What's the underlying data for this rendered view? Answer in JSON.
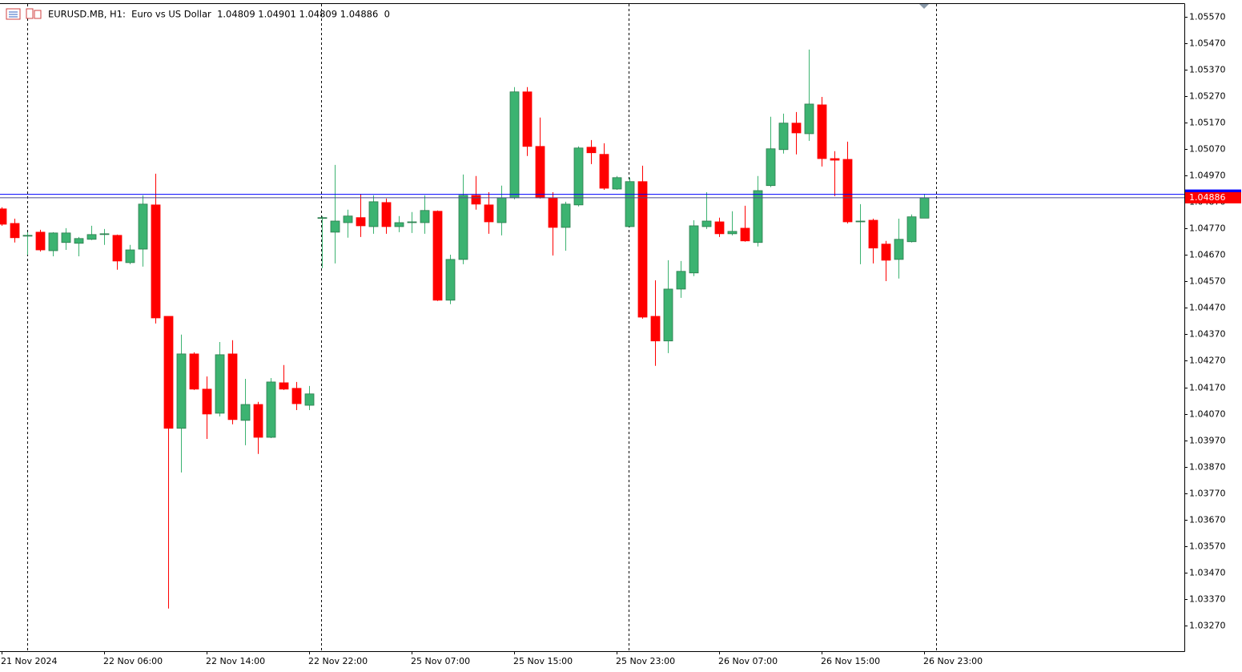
{
  "chart_data": {
    "type": "candlestick",
    "title": "EURUSD.MB, H1:  Euro vs US Dollar  1.04809 1.04901 1.04809 1.04886  0",
    "categories": [
      "21 Nov 2024",
      null,
      null,
      null,
      null,
      null,
      null,
      null,
      "22 Nov 06:00",
      null,
      null,
      null,
      null,
      null,
      null,
      null,
      "22 Nov 14:00",
      null,
      null,
      null,
      null,
      null,
      null,
      null,
      "22 Nov 22:00",
      null,
      null,
      null,
      null,
      null,
      null,
      null,
      "25 Nov 07:00",
      null,
      null,
      null,
      null,
      null,
      null,
      null,
      "25 Nov 15:00",
      null,
      null,
      null,
      null,
      null,
      null,
      null,
      "25 Nov 23:00",
      null,
      null,
      null,
      null,
      null,
      null,
      null,
      "26 Nov 07:00",
      null,
      null,
      null,
      null,
      null,
      null,
      null,
      "26 Nov 15:00",
      null,
      null,
      null,
      null,
      null,
      null,
      null,
      "26 Nov 23:00"
    ],
    "open": [
      1.04844,
      1.04789,
      1.04741,
      1.04756,
      1.04686,
      1.04717,
      1.04714,
      1.04729,
      1.04747,
      1.04744,
      1.04641,
      1.04692,
      1.04859,
      1.04438,
      1.04015,
      1.04296,
      1.04163,
      1.04072,
      1.04296,
      1.04045,
      1.04105,
      1.03981,
      1.04187,
      1.04166,
      1.04102,
      1.04811,
      1.04756,
      1.04792,
      1.04811,
      1.04777,
      1.04868,
      1.04777,
      1.04795,
      1.04792,
      1.04835,
      1.04499,
      1.04653,
      1.04895,
      1.04859,
      1.04792,
      1.04886,
      1.05286,
      1.0508,
      1.04886,
      1.04774,
      1.04859,
      1.05077,
      1.0505,
      1.04919,
      1.04777,
      1.04947,
      1.04438,
      1.04345,
      1.04541,
      1.04602,
      1.04777,
      1.04795,
      1.0475,
      1.04771,
      1.04717,
      1.04932,
      1.05068,
      1.05168,
      1.05128,
      1.05237,
      1.05034,
      1.05031,
      1.04798,
      1.04801,
      1.04711,
      1.04653,
      1.0472,
      1.04809
    ],
    "high": [
      1.0485,
      1.04807,
      1.04756,
      1.04765,
      1.04756,
      1.04771,
      1.04738,
      1.0478,
      1.04768,
      1.04747,
      1.04708,
      1.04895,
      1.04977,
      1.04438,
      1.04369,
      1.04302,
      1.04211,
      1.04341,
      1.04348,
      1.04202,
      1.04115,
      1.04205,
      1.04254,
      1.0419,
      1.04175,
      1.04817,
      1.0501,
      1.04841,
      1.04901,
      1.04895,
      1.04883,
      1.04817,
      1.04832,
      1.04895,
      1.04838,
      1.04671,
      1.04974,
      1.04968,
      1.04907,
      1.04932,
      1.05304,
      1.05304,
      1.05189,
      1.04907,
      1.04871,
      1.0508,
      1.05104,
      1.05092,
      1.04968,
      1.04962,
      1.05007,
      1.04574,
      1.0465,
      1.04647,
      1.04801,
      1.04907,
      1.04811,
      1.04835,
      1.04856,
      1.04968,
      1.05192,
      1.05204,
      1.0521,
      1.05446,
      1.05267,
      1.05062,
      1.05098,
      1.04862,
      1.04807,
      1.04723,
      1.04807,
      1.04823,
      1.04901
    ],
    "low": [
      1.0478,
      1.04717,
      1.04671,
      1.04683,
      1.04665,
      1.04689,
      1.04665,
      1.04726,
      1.04708,
      1.04614,
      1.04635,
      1.04626,
      1.04411,
      1.03334,
      1.03848,
      1.0416,
      1.03975,
      1.0406,
      1.0403,
      1.03951,
      1.03918,
      1.03978,
      1.0416,
      1.04084,
      1.04084,
      1.0462,
      1.04638,
      1.04735,
      1.04738,
      1.0475,
      1.0475,
      1.04756,
      1.04753,
      1.0475,
      1.04496,
      1.04484,
      1.04635,
      1.04841,
      1.0475,
      1.04744,
      1.0488,
      1.05044,
      1.04883,
      1.04668,
      1.04686,
      1.04853,
      1.05013,
      1.04916,
      1.04916,
      1.04774,
      1.04429,
      1.04251,
      1.04299,
      1.04508,
      1.0459,
      1.04768,
      1.04738,
      1.04744,
      1.0472,
      1.04702,
      1.04926,
      1.05053,
      1.0505,
      1.05101,
      1.05004,
      1.04892,
      1.04789,
      1.04635,
      1.04638,
      1.04571,
      1.04581,
      1.04717,
      1.04809
    ],
    "close": [
      1.04786,
      1.04735,
      1.04744,
      1.04689,
      1.04753,
      1.04753,
      1.04732,
      1.04747,
      1.0475,
      1.04647,
      1.04689,
      1.04862,
      1.04432,
      1.04015,
      1.04296,
      1.04163,
      1.04069,
      1.04293,
      1.04048,
      1.04105,
      1.03981,
      1.0419,
      1.04163,
      1.04108,
      1.04145,
      1.04811,
      1.04798,
      1.04817,
      1.0478,
      1.04871,
      1.04777,
      1.04792,
      1.04795,
      1.04838,
      1.04499,
      1.04653,
      1.04895,
      1.04862,
      1.04795,
      1.04886,
      1.05286,
      1.0508,
      1.04886,
      1.04774,
      1.04862,
      1.05074,
      1.05056,
      1.04922,
      1.04962,
      1.04947,
      1.04435,
      1.04345,
      1.04541,
      1.04608,
      1.0478,
      1.04798,
      1.0475,
      1.04759,
      1.04723,
      1.04913,
      1.05071,
      1.05168,
      1.05131,
      1.0524,
      1.05034,
      1.05028,
      1.04795,
      1.04798,
      1.04696,
      1.0465,
      1.04729,
      1.04814,
      1.04886
    ],
    "up_color": "#3cb371",
    "down_color": "#ff0000",
    "ylim": [
      1.03173,
      1.05618
    ],
    "yticks": [
      {
        "value": 1.0557,
        "label": "1.05570"
      },
      {
        "value": 1.0547,
        "label": "1.05470"
      },
      {
        "value": 1.0537,
        "label": "1.05370"
      },
      {
        "value": 1.0527,
        "label": "1.05270"
      },
      {
        "value": 1.0517,
        "label": "1.05170"
      },
      {
        "value": 1.0507,
        "label": "1.05070"
      },
      {
        "value": 1.0497,
        "label": "1.04970"
      },
      {
        "value": 1.0487,
        "label": "1.04870"
      },
      {
        "value": 1.0477,
        "label": "1.04770"
      },
      {
        "value": 1.0467,
        "label": "1.04670"
      },
      {
        "value": 1.0457,
        "label": "1.04570"
      },
      {
        "value": 1.0447,
        "label": "1.04470"
      },
      {
        "value": 1.0437,
        "label": "1.04370"
      },
      {
        "value": 1.0427,
        "label": "1.04270"
      },
      {
        "value": 1.0417,
        "label": "1.04170"
      },
      {
        "value": 1.0407,
        "label": "1.04070"
      },
      {
        "value": 1.0397,
        "label": "1.03970"
      },
      {
        "value": 1.0387,
        "label": "1.03870"
      },
      {
        "value": 1.0377,
        "label": "1.03770"
      },
      {
        "value": 1.0367,
        "label": "1.03670"
      },
      {
        "value": 1.0357,
        "label": "1.03570"
      },
      {
        "value": 1.0347,
        "label": "1.03470"
      },
      {
        "value": 1.0337,
        "label": "1.03370"
      },
      {
        "value": 1.0327,
        "label": "1.03270"
      }
    ],
    "grid": false,
    "bid": {
      "value": 1.04886,
      "label": "1.04886",
      "color": "#4a4a8a",
      "label_color": "#ff0000"
    },
    "ask": {
      "value": 1.04899,
      "color": "#0000ff"
    }
  }
}
